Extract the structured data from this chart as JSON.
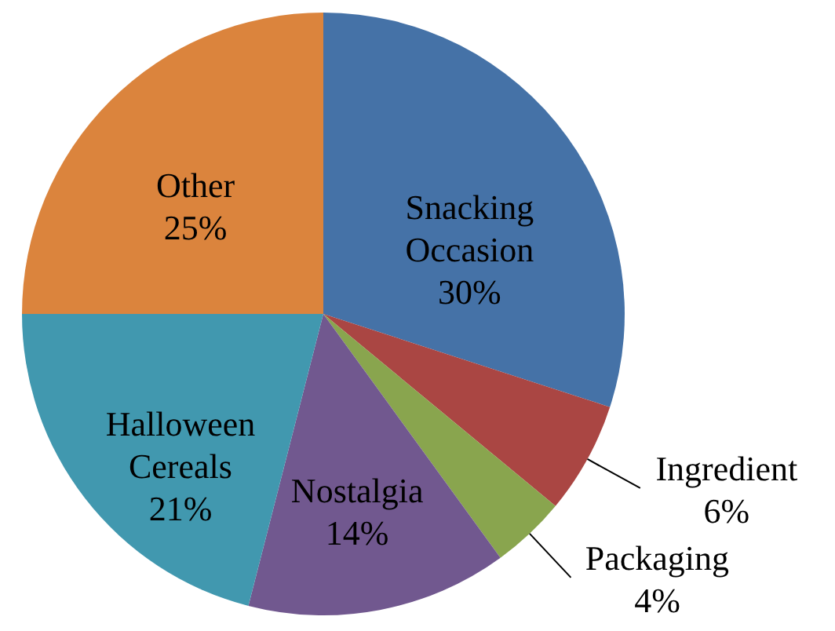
{
  "chart_data": {
    "type": "pie",
    "categories": [
      "Snacking Occasion",
      "Ingredient",
      "Packaging",
      "Nostalgia",
      "Halloween Cereals",
      "Other"
    ],
    "values": [
      30,
      6,
      4,
      14,
      21,
      25
    ],
    "value_labels": [
      "30%",
      "6%",
      "4%",
      "14%",
      "21%",
      "25%"
    ],
    "colors": [
      "#4572a7",
      "#aa4643",
      "#89a54e",
      "#71588f",
      "#4198af",
      "#db843d"
    ]
  }
}
